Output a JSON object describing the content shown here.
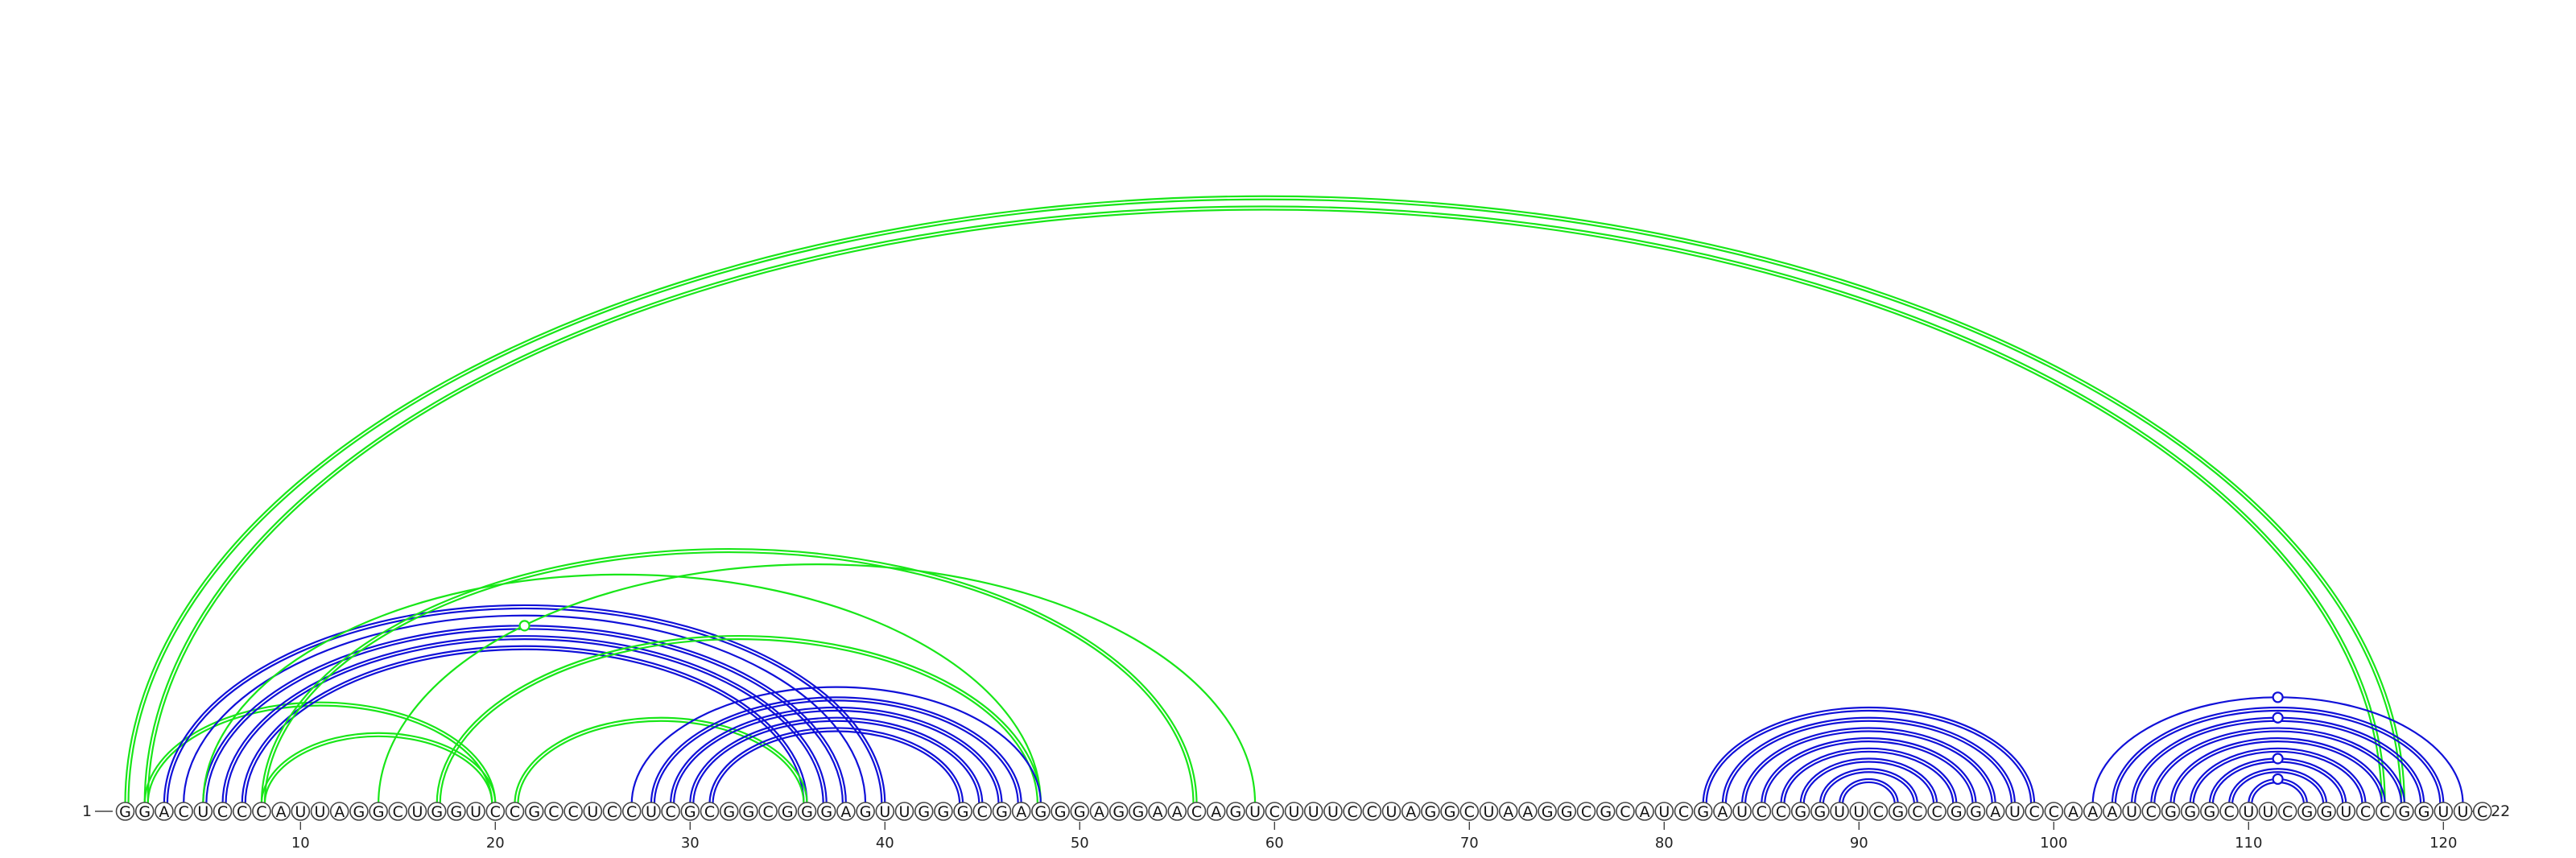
{
  "sequence": "GGACUCCCAUUAGGCUGGUCCGCCUCCUCGCGGCGGGAGUUGGGCGAGGGAGGAACAGUCUUUCCUAGGCUAAGGCGCAUCGAUCCGGUUCGCCGGAUCCAAAUCGGGCUUCGGUCCGGUUC",
  "start_label": "1",
  "end_label": "122",
  "ticks": [
    10,
    20,
    30,
    40,
    50,
    60,
    70,
    80,
    90,
    100,
    110,
    120
  ],
  "colors": {
    "green": "#18e618",
    "blue": "#1010d8",
    "circle_stroke": "#444444"
  },
  "chart_data": {
    "type": "arc-diagram",
    "length": 122,
    "arcs": [
      {
        "i": 1,
        "j": 118,
        "color": "green",
        "double": true
      },
      {
        "i": 2,
        "j": 117,
        "color": "green",
        "double": true
      },
      {
        "i": 2,
        "j": 20,
        "color": "green",
        "double": true
      },
      {
        "i": 3,
        "j": 40,
        "color": "blue",
        "double": true
      },
      {
        "i": 4,
        "j": 39,
        "color": "blue",
        "double": false
      },
      {
        "i": 5,
        "j": 38,
        "color": "blue",
        "double": true
      },
      {
        "i": 6,
        "j": 37,
        "color": "blue",
        "double": true
      },
      {
        "i": 7,
        "j": 36,
        "color": "blue",
        "double": true
      },
      {
        "i": 8,
        "j": 20,
        "color": "green",
        "double": true
      },
      {
        "i": 5,
        "j": 48,
        "color": "green",
        "double": false
      },
      {
        "i": 8,
        "j": 56,
        "color": "green",
        "double": true
      },
      {
        "i": 14,
        "j": 59,
        "color": "green",
        "double": false
      },
      {
        "i": 17,
        "j": 48,
        "color": "green",
        "double": true
      },
      {
        "i": 21,
        "j": 36,
        "color": "green",
        "double": true
      },
      {
        "i": 27,
        "j": 48,
        "color": "blue",
        "double": false
      },
      {
        "i": 28,
        "j": 47,
        "color": "blue",
        "double": true
      },
      {
        "i": 29,
        "j": 46,
        "color": "blue",
        "double": true
      },
      {
        "i": 30,
        "j": 45,
        "color": "blue",
        "double": true
      },
      {
        "i": 31,
        "j": 44,
        "color": "blue",
        "double": true
      },
      {
        "i": 82,
        "j": 99,
        "color": "blue",
        "double": true
      },
      {
        "i": 83,
        "j": 98,
        "color": "blue",
        "double": true
      },
      {
        "i": 84,
        "j": 97,
        "color": "blue",
        "double": true
      },
      {
        "i": 85,
        "j": 96,
        "color": "blue",
        "double": true
      },
      {
        "i": 86,
        "j": 95,
        "color": "blue",
        "double": true
      },
      {
        "i": 87,
        "j": 94,
        "color": "blue",
        "double": true
      },
      {
        "i": 88,
        "j": 93,
        "color": "blue",
        "double": true
      },
      {
        "i": 89,
        "j": 92,
        "color": "blue",
        "double": true
      },
      {
        "i": 102,
        "j": 121,
        "color": "blue",
        "double": false
      },
      {
        "i": 103,
        "j": 120,
        "color": "blue",
        "double": true
      },
      {
        "i": 104,
        "j": 119,
        "color": "blue",
        "double": true
      },
      {
        "i": 105,
        "j": 118,
        "color": "blue",
        "double": true
      },
      {
        "i": 106,
        "j": 117,
        "color": "blue",
        "double": true
      },
      {
        "i": 107,
        "j": 116,
        "color": "blue",
        "double": true
      },
      {
        "i": 108,
        "j": 115,
        "color": "blue",
        "double": true
      },
      {
        "i": 109,
        "j": 114,
        "color": "blue",
        "double": true
      },
      {
        "i": 110,
        "j": 113,
        "color": "blue",
        "double": true
      }
    ],
    "arc_markers": [
      {
        "position": 36.5,
        "color": "green",
        "on_arc": 5
      },
      {
        "position": 90.5,
        "color": "blue",
        "on_arc": 27
      },
      {
        "position": 111.5,
        "color": "blue",
        "on_arc": 29
      },
      {
        "position": 111.5,
        "color": "blue",
        "on_arc": 33
      },
      {
        "position": 111.5,
        "color": "blue",
        "on_arc": 35
      }
    ]
  }
}
